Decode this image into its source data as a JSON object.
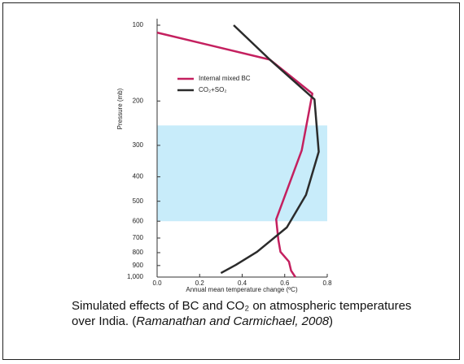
{
  "chart_data": {
    "type": "line",
    "x_label": "Annual mean temperature change (ºC)",
    "y_label": "Pressure (mb)",
    "xlim": [
      0,
      0.8
    ],
    "ylim": [
      1000,
      100
    ],
    "y_log": true,
    "xticks": [
      {
        "value": 0,
        "label": "0.0"
      },
      0.2,
      0.4,
      0.6,
      0.8
    ],
    "yticks": [
      100,
      200,
      300,
      400,
      500,
      600,
      700,
      800,
      900,
      {
        "value": 1000,
        "label": "1,000"
      }
    ],
    "shaded_band": {
      "range": [
        250,
        600
      ],
      "color": "#c8ecfa"
    },
    "legend": "upper left",
    "series": [
      {
        "name": "Internal mixed BC",
        "color": "#c4205f",
        "x": [
          0,
          0.53,
          0.73,
          0.68,
          0.56,
          0.57,
          0.58,
          0.62,
          0.63,
          0.65
        ],
        "values": [
          107,
          137,
          187,
          314,
          590,
          711,
          794,
          869,
          943,
          1000
        ]
      },
      {
        "name": "CO₂+SO₂",
        "color": "#2b2b2b",
        "x": [
          0.36,
          0.53,
          0.74,
          0.76,
          0.7,
          0.61,
          0.47,
          0.37,
          0.3
        ],
        "values": [
          100,
          137,
          197,
          318,
          472,
          635,
          794,
          895,
          964
        ]
      }
    ]
  },
  "caption": [
    {
      "text": "Simulated effects of BC and CO₂ on atmospheric temperatures over India.  (",
      "italic": false
    },
    {
      "text": "Ramanathan and Carmichael, 2008",
      "italic": true
    },
    {
      "text": ")",
      "italic": false
    }
  ]
}
